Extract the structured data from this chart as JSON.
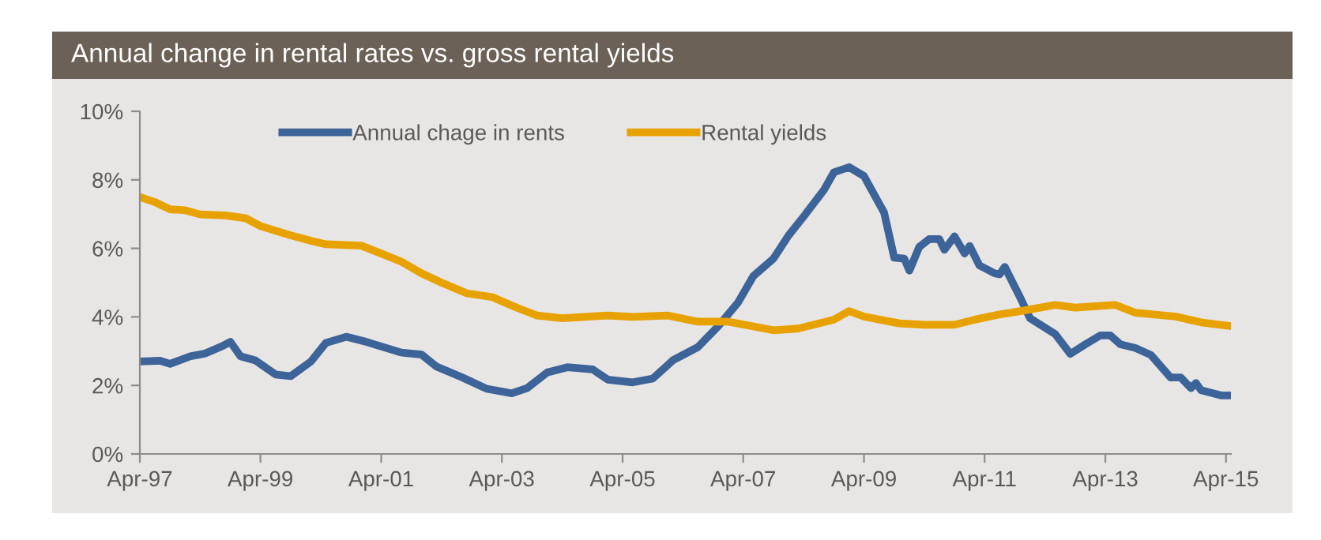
{
  "chart_data": {
    "type": "line",
    "title": "Annual change in rental rates vs. gross rental yields",
    "xlim": [
      "1997-04",
      "2015-05"
    ],
    "ylim": [
      0,
      10
    ],
    "xticks": [
      {
        "value": "1997-04",
        "label": "Apr-97"
      },
      {
        "value": "1999-04",
        "label": "Apr-99"
      },
      {
        "value": "2001-04",
        "label": "Apr-01"
      },
      {
        "value": "2003-04",
        "label": "Apr-03"
      },
      {
        "value": "2005-04",
        "label": "Apr-05"
      },
      {
        "value": "2007-04",
        "label": "Apr-07"
      },
      {
        "value": "2009-04",
        "label": "Apr-09"
      },
      {
        "value": "2011-04",
        "label": "Apr-11"
      },
      {
        "value": "2013-04",
        "label": "Apr-13"
      },
      {
        "value": "2015-04",
        "label": "Apr-15"
      }
    ],
    "yticks": [
      {
        "value": 0,
        "label": "0%"
      },
      {
        "value": 2,
        "label": "2%"
      },
      {
        "value": 4,
        "label": "4%"
      },
      {
        "value": 6,
        "label": "6%"
      },
      {
        "value": 8,
        "label": "8%"
      },
      {
        "value": 10,
        "label": "10%"
      }
    ],
    "grid": false,
    "legend": "top",
    "marker": "none",
    "line_style": "solid",
    "series": [
      {
        "name": "Annual chage in rents",
        "color": "#3d6499",
        "x": [
          "1997-04",
          "1997-08",
          "1997-10",
          "1998-02",
          "1998-05",
          "1998-08",
          "1998-10",
          "1998-12",
          "1999-03",
          "1999-07",
          "1999-10",
          "2000-02",
          "2000-05",
          "2000-09",
          "2001-01",
          "2001-08",
          "2001-12",
          "2002-03",
          "2002-08",
          "2003-01",
          "2003-06",
          "2003-09",
          "2004-01",
          "2004-05",
          "2004-10",
          "2005-01",
          "2005-06",
          "2005-10",
          "2006-02",
          "2006-07",
          "2006-11",
          "2007-03",
          "2007-06",
          "2007-10",
          "2008-01",
          "2008-04",
          "2008-08",
          "2008-10",
          "2009-01",
          "2009-04",
          "2009-08",
          "2009-10",
          "2009-12",
          "2010-01",
          "2010-03",
          "2010-05",
          "2010-07",
          "2010-08",
          "2010-10",
          "2010-12",
          "2011-01",
          "2011-03",
          "2011-06",
          "2011-07",
          "2011-08",
          "2011-11",
          "2012-01",
          "2012-06",
          "2012-09",
          "2012-12",
          "2013-03",
          "2013-05",
          "2013-07",
          "2013-10",
          "2014-01",
          "2014-05",
          "2014-07",
          "2014-09",
          "2014-10",
          "2014-11",
          "2015-03",
          "2015-05"
        ],
        "values": [
          2.7,
          2.72,
          2.63,
          2.85,
          2.93,
          3.12,
          3.27,
          2.85,
          2.73,
          2.32,
          2.27,
          2.7,
          3.24,
          3.42,
          3.27,
          2.96,
          2.9,
          2.55,
          2.24,
          1.9,
          1.77,
          1.92,
          2.38,
          2.53,
          2.47,
          2.17,
          2.09,
          2.2,
          2.74,
          3.12,
          3.73,
          4.42,
          5.19,
          5.7,
          6.38,
          6.93,
          7.7,
          8.22,
          8.37,
          8.11,
          7.04,
          5.73,
          5.7,
          5.35,
          6.04,
          6.27,
          6.27,
          5.96,
          6.35,
          5.85,
          6.07,
          5.5,
          5.27,
          5.24,
          5.46,
          4.58,
          3.96,
          3.5,
          2.92,
          3.2,
          3.46,
          3.46,
          3.2,
          3.09,
          2.89,
          2.23,
          2.23,
          1.92,
          2.07,
          1.86,
          1.71,
          1.71
        ]
      },
      {
        "name": "Rental yields",
        "color": "#e8a200",
        "x": [
          "1997-04",
          "1997-07",
          "1997-10",
          "1998-01",
          "1998-04",
          "1998-09",
          "1999-01",
          "1999-04",
          "1999-10",
          "2000-02",
          "2000-05",
          "2000-12",
          "2001-04",
          "2001-08",
          "2001-12",
          "2002-04",
          "2002-09",
          "2003-02",
          "2003-07",
          "2003-11",
          "2004-04",
          "2005-01",
          "2005-06",
          "2006-01",
          "2006-07",
          "2007-01",
          "2007-10",
          "2008-03",
          "2008-10",
          "2009-01",
          "2009-04",
          "2009-11",
          "2010-04",
          "2010-10",
          "2011-02",
          "2011-07",
          "2011-12",
          "2012-06",
          "2012-10",
          "2013-06",
          "2013-10",
          "2014-06",
          "2014-11",
          "2015-05"
        ],
        "values": [
          7.5,
          7.35,
          7.14,
          7.11,
          6.99,
          6.96,
          6.88,
          6.65,
          6.38,
          6.22,
          6.12,
          6.08,
          5.85,
          5.61,
          5.27,
          5.0,
          4.69,
          4.58,
          4.27,
          4.04,
          3.96,
          4.04,
          4.0,
          4.04,
          3.86,
          3.86,
          3.61,
          3.66,
          3.92,
          4.17,
          4.01,
          3.81,
          3.77,
          3.77,
          3.92,
          4.07,
          4.19,
          4.35,
          4.27,
          4.35,
          4.12,
          4.01,
          3.84,
          3.73
        ]
      }
    ]
  }
}
